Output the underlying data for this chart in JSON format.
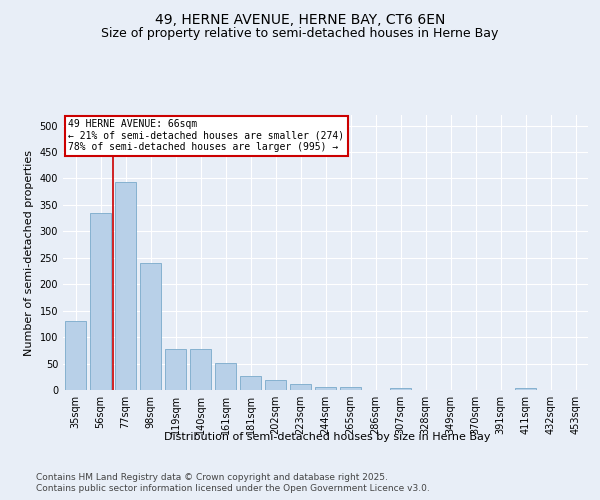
{
  "title_line1": "49, HERNE AVENUE, HERNE BAY, CT6 6EN",
  "title_line2": "Size of property relative to semi-detached houses in Herne Bay",
  "xlabel": "Distribution of semi-detached houses by size in Herne Bay",
  "ylabel": "Number of semi-detached properties",
  "categories": [
    "35sqm",
    "56sqm",
    "77sqm",
    "98sqm",
    "119sqm",
    "140sqm",
    "161sqm",
    "181sqm",
    "202sqm",
    "223sqm",
    "244sqm",
    "265sqm",
    "286sqm",
    "307sqm",
    "328sqm",
    "349sqm",
    "370sqm",
    "391sqm",
    "411sqm",
    "432sqm",
    "453sqm"
  ],
  "values": [
    130,
    335,
    393,
    240,
    78,
    78,
    52,
    27,
    18,
    11,
    5,
    5,
    0,
    4,
    0,
    0,
    0,
    0,
    4,
    0,
    0
  ],
  "bar_color": "#b8d0e8",
  "bar_edge_color": "#7aaacb",
  "annotation_title": "49 HERNE AVENUE: 66sqm",
  "annotation_line1": "← 21% of semi-detached houses are smaller (274)",
  "annotation_line2": "78% of semi-detached houses are larger (995) →",
  "annotation_box_color": "#ffffff",
  "annotation_box_edge_color": "#cc0000",
  "property_line_color": "#cc0000",
  "ylim": [
    0,
    520
  ],
  "yticks": [
    0,
    50,
    100,
    150,
    200,
    250,
    300,
    350,
    400,
    450,
    500
  ],
  "footer_line1": "Contains HM Land Registry data © Crown copyright and database right 2025.",
  "footer_line2": "Contains public sector information licensed under the Open Government Licence v3.0.",
  "bg_color": "#e8eef7",
  "plot_bg_color": "#e8eef7",
  "title_fontsize": 10,
  "subtitle_fontsize": 9,
  "axis_label_fontsize": 8,
  "tick_fontsize": 7,
  "annotation_fontsize": 7,
  "footer_fontsize": 6.5
}
